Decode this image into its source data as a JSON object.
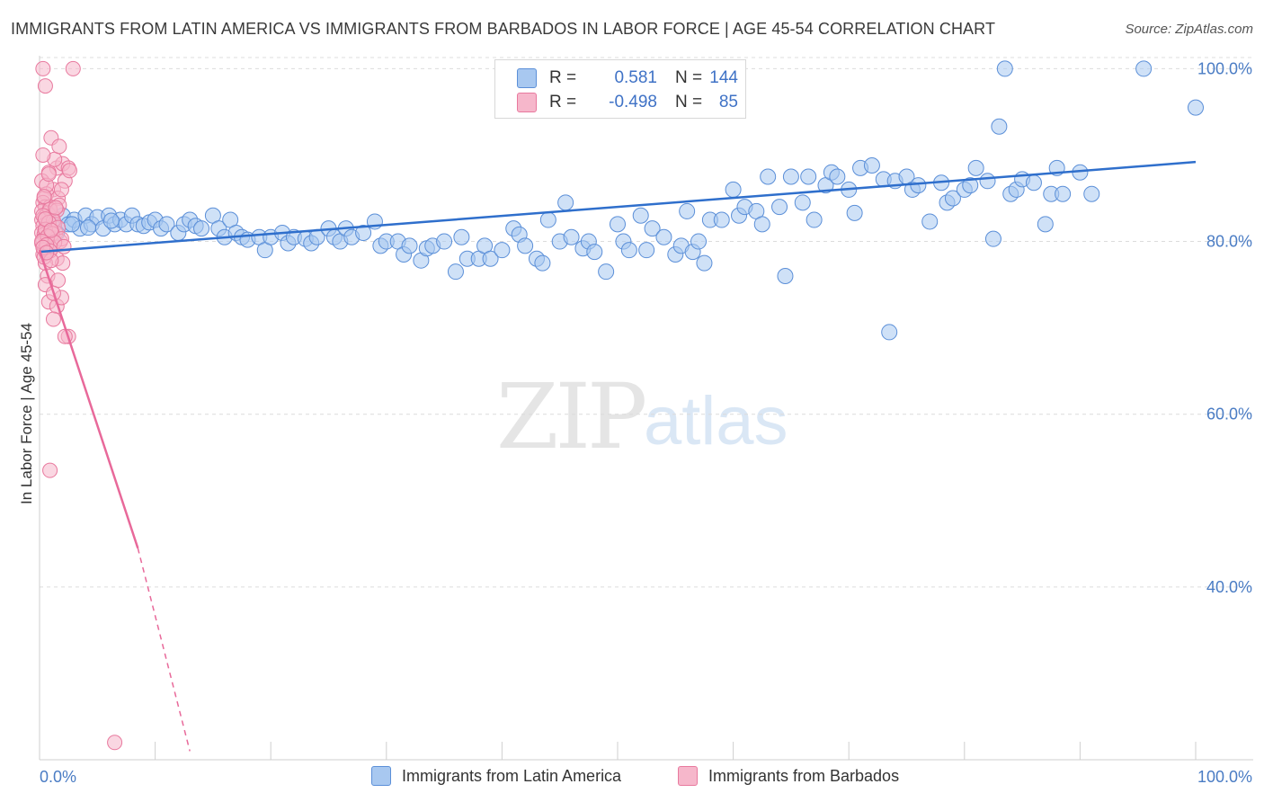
{
  "header": {
    "title": "IMMIGRANTS FROM LATIN AMERICA VS IMMIGRANTS FROM BARBADOS IN LABOR FORCE | AGE 45-54 CORRELATION CHART",
    "source": "Source: ZipAtlas.com"
  },
  "watermark": {
    "zip": "ZIP",
    "atlas": "atlas"
  },
  "legend": {
    "rows": [
      {
        "r_label": "R =",
        "r_value": "0.581",
        "n_label": "N =",
        "n_value": "144",
        "color": "#a8c8f0"
      },
      {
        "r_label": "R =",
        "r_value": "-0.498",
        "n_label": "N =",
        "n_value": "85",
        "color": "#f6b7cb"
      }
    ]
  },
  "bottom_legend": {
    "items": [
      {
        "label": "Immigrants from Latin America",
        "color": "#a8c8f0"
      },
      {
        "label": "Immigrants from Barbados",
        "color": "#f6b7cb"
      }
    ]
  },
  "colors": {
    "blue_fill": "#a8c8f0",
    "blue_stroke": "#5b8fd8",
    "blue_line": "#2f6fcc",
    "pink_fill": "#f6b7cb",
    "pink_stroke": "#e8799e",
    "pink_line": "#e8699a",
    "grid": "#dcdcdc",
    "tick_text": "#4a7cc4"
  },
  "chart_data": {
    "type": "scatter",
    "title": "IMMIGRANTS FROM LATIN AMERICA VS IMMIGRANTS FROM BARBADOS IN LABOR FORCE | AGE 45-54 CORRELATION CHART",
    "xlabel": "",
    "ylabel": "In Labor Force | Age 45-54",
    "xlim": [
      0,
      100
    ],
    "ylim": [
      20,
      101.5
    ],
    "x_tick_labels": [
      "0.0%",
      "100.0%"
    ],
    "y_ticks": [
      40,
      60,
      80,
      100
    ],
    "y_tick_labels": [
      "40.0%",
      "60.0%",
      "80.0%",
      "100.0%"
    ],
    "grid": "horizontal dashed",
    "legend_position": "top-center",
    "series": [
      {
        "name": "Immigrants from Latin America",
        "trend": {
          "x": [
            0,
            100
          ],
          "y": [
            78.8,
            89.2
          ]
        },
        "points": [
          [
            1,
            82
          ],
          [
            1.5,
            81
          ],
          [
            2,
            83
          ],
          [
            2.5,
            82
          ],
          [
            3,
            82.5
          ],
          [
            3.5,
            81.5
          ],
          [
            4,
            83
          ],
          [
            4.5,
            82
          ],
          [
            5,
            82.8
          ],
          [
            5.5,
            81.5
          ],
          [
            6,
            83
          ],
          [
            6.5,
            82
          ],
          [
            7,
            82.5
          ],
          [
            7.5,
            82
          ],
          [
            8,
            83
          ],
          [
            8.5,
            82
          ],
          [
            9,
            81.8
          ],
          [
            9.5,
            82.2
          ],
          [
            10,
            82.5
          ],
          [
            10.5,
            81.5
          ],
          [
            11,
            82
          ],
          [
            12,
            81
          ],
          [
            12.5,
            82
          ],
          [
            13,
            82.5
          ],
          [
            13.5,
            81.8
          ],
          [
            14,
            81.5
          ],
          [
            15,
            83
          ],
          [
            15.5,
            81.5
          ],
          [
            16,
            80.5
          ],
          [
            16.5,
            82.5
          ],
          [
            17,
            81
          ],
          [
            17.5,
            80.5
          ],
          [
            18,
            80.2
          ],
          [
            19,
            80.5
          ],
          [
            19.5,
            79
          ],
          [
            20,
            80.5
          ],
          [
            21,
            81
          ],
          [
            21.5,
            79.8
          ],
          [
            22,
            80.5
          ],
          [
            23,
            80.3
          ],
          [
            23.5,
            79.8
          ],
          [
            24,
            80.5
          ],
          [
            25,
            81.5
          ],
          [
            25.5,
            80.5
          ],
          [
            26,
            80
          ],
          [
            26.5,
            81.5
          ],
          [
            27,
            80.5
          ],
          [
            28,
            81
          ],
          [
            29,
            82.3
          ],
          [
            29.5,
            79.5
          ],
          [
            30,
            80
          ],
          [
            31,
            80
          ],
          [
            31.5,
            78.5
          ],
          [
            32,
            79.5
          ],
          [
            33,
            77.8
          ],
          [
            33.5,
            79.2
          ],
          [
            34,
            79.5
          ],
          [
            35,
            80
          ],
          [
            36,
            76.5
          ],
          [
            36.5,
            80.5
          ],
          [
            37,
            78
          ],
          [
            38,
            78
          ],
          [
            38.5,
            79.5
          ],
          [
            39,
            78
          ],
          [
            40,
            79
          ],
          [
            41,
            81.5
          ],
          [
            41.5,
            80.8
          ],
          [
            42,
            79.5
          ],
          [
            43,
            78
          ],
          [
            43.5,
            77.5
          ],
          [
            44,
            82.5
          ],
          [
            45,
            80
          ],
          [
            45.5,
            84.5
          ],
          [
            46,
            80.5
          ],
          [
            47,
            79.2
          ],
          [
            47.5,
            80
          ],
          [
            48,
            78.8
          ],
          [
            49,
            76.5
          ],
          [
            50,
            82
          ],
          [
            50.5,
            80
          ],
          [
            51,
            79
          ],
          [
            52,
            83
          ],
          [
            52.5,
            79
          ],
          [
            53,
            81.5
          ],
          [
            54,
            80.5
          ],
          [
            55,
            78.5
          ],
          [
            55.5,
            79.5
          ],
          [
            56,
            83.5
          ],
          [
            56.5,
            78.8
          ],
          [
            57,
            80
          ],
          [
            57.5,
            77.5
          ],
          [
            58,
            82.5
          ],
          [
            59,
            82.5
          ],
          [
            60,
            86
          ],
          [
            60.5,
            83
          ],
          [
            61,
            84
          ],
          [
            62,
            83.5
          ],
          [
            62.5,
            82
          ],
          [
            63,
            87.5
          ],
          [
            64,
            84
          ],
          [
            64.5,
            76
          ],
          [
            65,
            87.5
          ],
          [
            66,
            84.5
          ],
          [
            66.5,
            87.5
          ],
          [
            67,
            82.5
          ],
          [
            68,
            86.5
          ],
          [
            68.5,
            88
          ],
          [
            69,
            87.5
          ],
          [
            70,
            86
          ],
          [
            70.5,
            83.3
          ],
          [
            71,
            88.5
          ],
          [
            72,
            88.8
          ],
          [
            73,
            87.2
          ],
          [
            73.5,
            69.5
          ],
          [
            74,
            87
          ],
          [
            75,
            87.5
          ],
          [
            75.5,
            86
          ],
          [
            76,
            86.5
          ],
          [
            77,
            82.3
          ],
          [
            78,
            86.8
          ],
          [
            78.5,
            84.5
          ],
          [
            79,
            85
          ],
          [
            80,
            86
          ],
          [
            80.5,
            86.5
          ],
          [
            81,
            88.5
          ],
          [
            82,
            87
          ],
          [
            82.5,
            80.3
          ],
          [
            83,
            93.3
          ],
          [
            84,
            85.5
          ],
          [
            84.5,
            86
          ],
          [
            85,
            87.2
          ],
          [
            86,
            86.8
          ],
          [
            87,
            82
          ],
          [
            87.5,
            85.5
          ],
          [
            88,
            88.5
          ],
          [
            88.5,
            85.5
          ],
          [
            90,
            88
          ],
          [
            91,
            85.5
          ],
          [
            83.5,
            100
          ],
          [
            95.5,
            100
          ],
          [
            100,
            95.5
          ],
          [
            2.8,
            82
          ],
          [
            4.2,
            81.6
          ],
          [
            6.2,
            82.4
          ]
        ]
      },
      {
        "name": "Immigrants from Barbados",
        "trend": {
          "x": [
            0,
            8.5,
            13
          ],
          "y": [
            79,
            44.5,
            21
          ]
        },
        "points": [
          [
            0.3,
            100
          ],
          [
            0.5,
            98
          ],
          [
            1,
            92
          ],
          [
            1.5,
            88.5
          ],
          [
            0.8,
            88
          ],
          [
            2,
            89
          ],
          [
            2.5,
            88.5
          ],
          [
            0.2,
            87
          ],
          [
            1.2,
            86
          ],
          [
            0.6,
            85.5
          ],
          [
            0.4,
            85
          ],
          [
            1.6,
            85
          ],
          [
            0.3,
            84.5
          ],
          [
            0.5,
            84
          ],
          [
            0.9,
            84
          ],
          [
            0.2,
            83.5
          ],
          [
            0.7,
            83.3
          ],
          [
            1.1,
            83
          ],
          [
            0.4,
            82.8
          ],
          [
            0.2,
            82.5
          ],
          [
            0.6,
            82
          ],
          [
            1.3,
            82
          ],
          [
            0.3,
            81.8
          ],
          [
            0.8,
            81.5
          ],
          [
            0.5,
            81.2
          ],
          [
            0.2,
            81
          ],
          [
            1.4,
            81
          ],
          [
            0.4,
            80.8
          ],
          [
            0.9,
            80.5
          ],
          [
            0.3,
            80.2
          ],
          [
            0.6,
            80
          ],
          [
            1.8,
            80
          ],
          [
            0.2,
            79.8
          ],
          [
            0.7,
            79.5
          ],
          [
            1.0,
            79.2
          ],
          [
            0.4,
            79
          ],
          [
            0.3,
            78.5
          ],
          [
            1.5,
            78
          ],
          [
            0.5,
            77.5
          ],
          [
            2,
            77.5
          ],
          [
            0.7,
            76
          ],
          [
            0.8,
            73
          ],
          [
            1.5,
            72.5
          ],
          [
            1.2,
            71
          ],
          [
            2.5,
            69
          ],
          [
            2.2,
            69
          ],
          [
            0.9,
            53.5
          ],
          [
            6.5,
            22
          ],
          [
            2.9,
            100
          ],
          [
            1.3,
            89.5
          ],
          [
            2.2,
            87
          ],
          [
            0.6,
            86.5
          ],
          [
            1.9,
            86
          ],
          [
            0.4,
            85.2
          ],
          [
            1.7,
            84.2
          ],
          [
            0.9,
            83.7
          ],
          [
            1.5,
            83.6
          ],
          [
            0.3,
            83
          ],
          [
            1.2,
            82.4
          ],
          [
            0.8,
            82.2
          ],
          [
            1.6,
            81.6
          ],
          [
            0.5,
            81.4
          ],
          [
            1.1,
            80.9
          ],
          [
            0.7,
            80.6
          ],
          [
            1.9,
            80.3
          ],
          [
            0.2,
            80
          ],
          [
            1.3,
            79.9
          ],
          [
            0.6,
            79.6
          ],
          [
            2.1,
            79.4
          ],
          [
            0.9,
            78.9
          ],
          [
            0.4,
            78.2
          ],
          [
            1.0,
            77.8
          ],
          [
            1.6,
            75.5
          ],
          [
            0.5,
            75
          ],
          [
            1.9,
            73.5
          ],
          [
            1.2,
            74
          ],
          [
            0.3,
            90
          ],
          [
            1.7,
            91
          ],
          [
            2.6,
            88.2
          ],
          [
            0.8,
            87.8
          ],
          [
            1.4,
            83.9
          ],
          [
            0.5,
            82.6
          ],
          [
            1.0,
            81.3
          ],
          [
            0.3,
            79.3
          ],
          [
            0.6,
            78.7
          ]
        ]
      }
    ]
  }
}
